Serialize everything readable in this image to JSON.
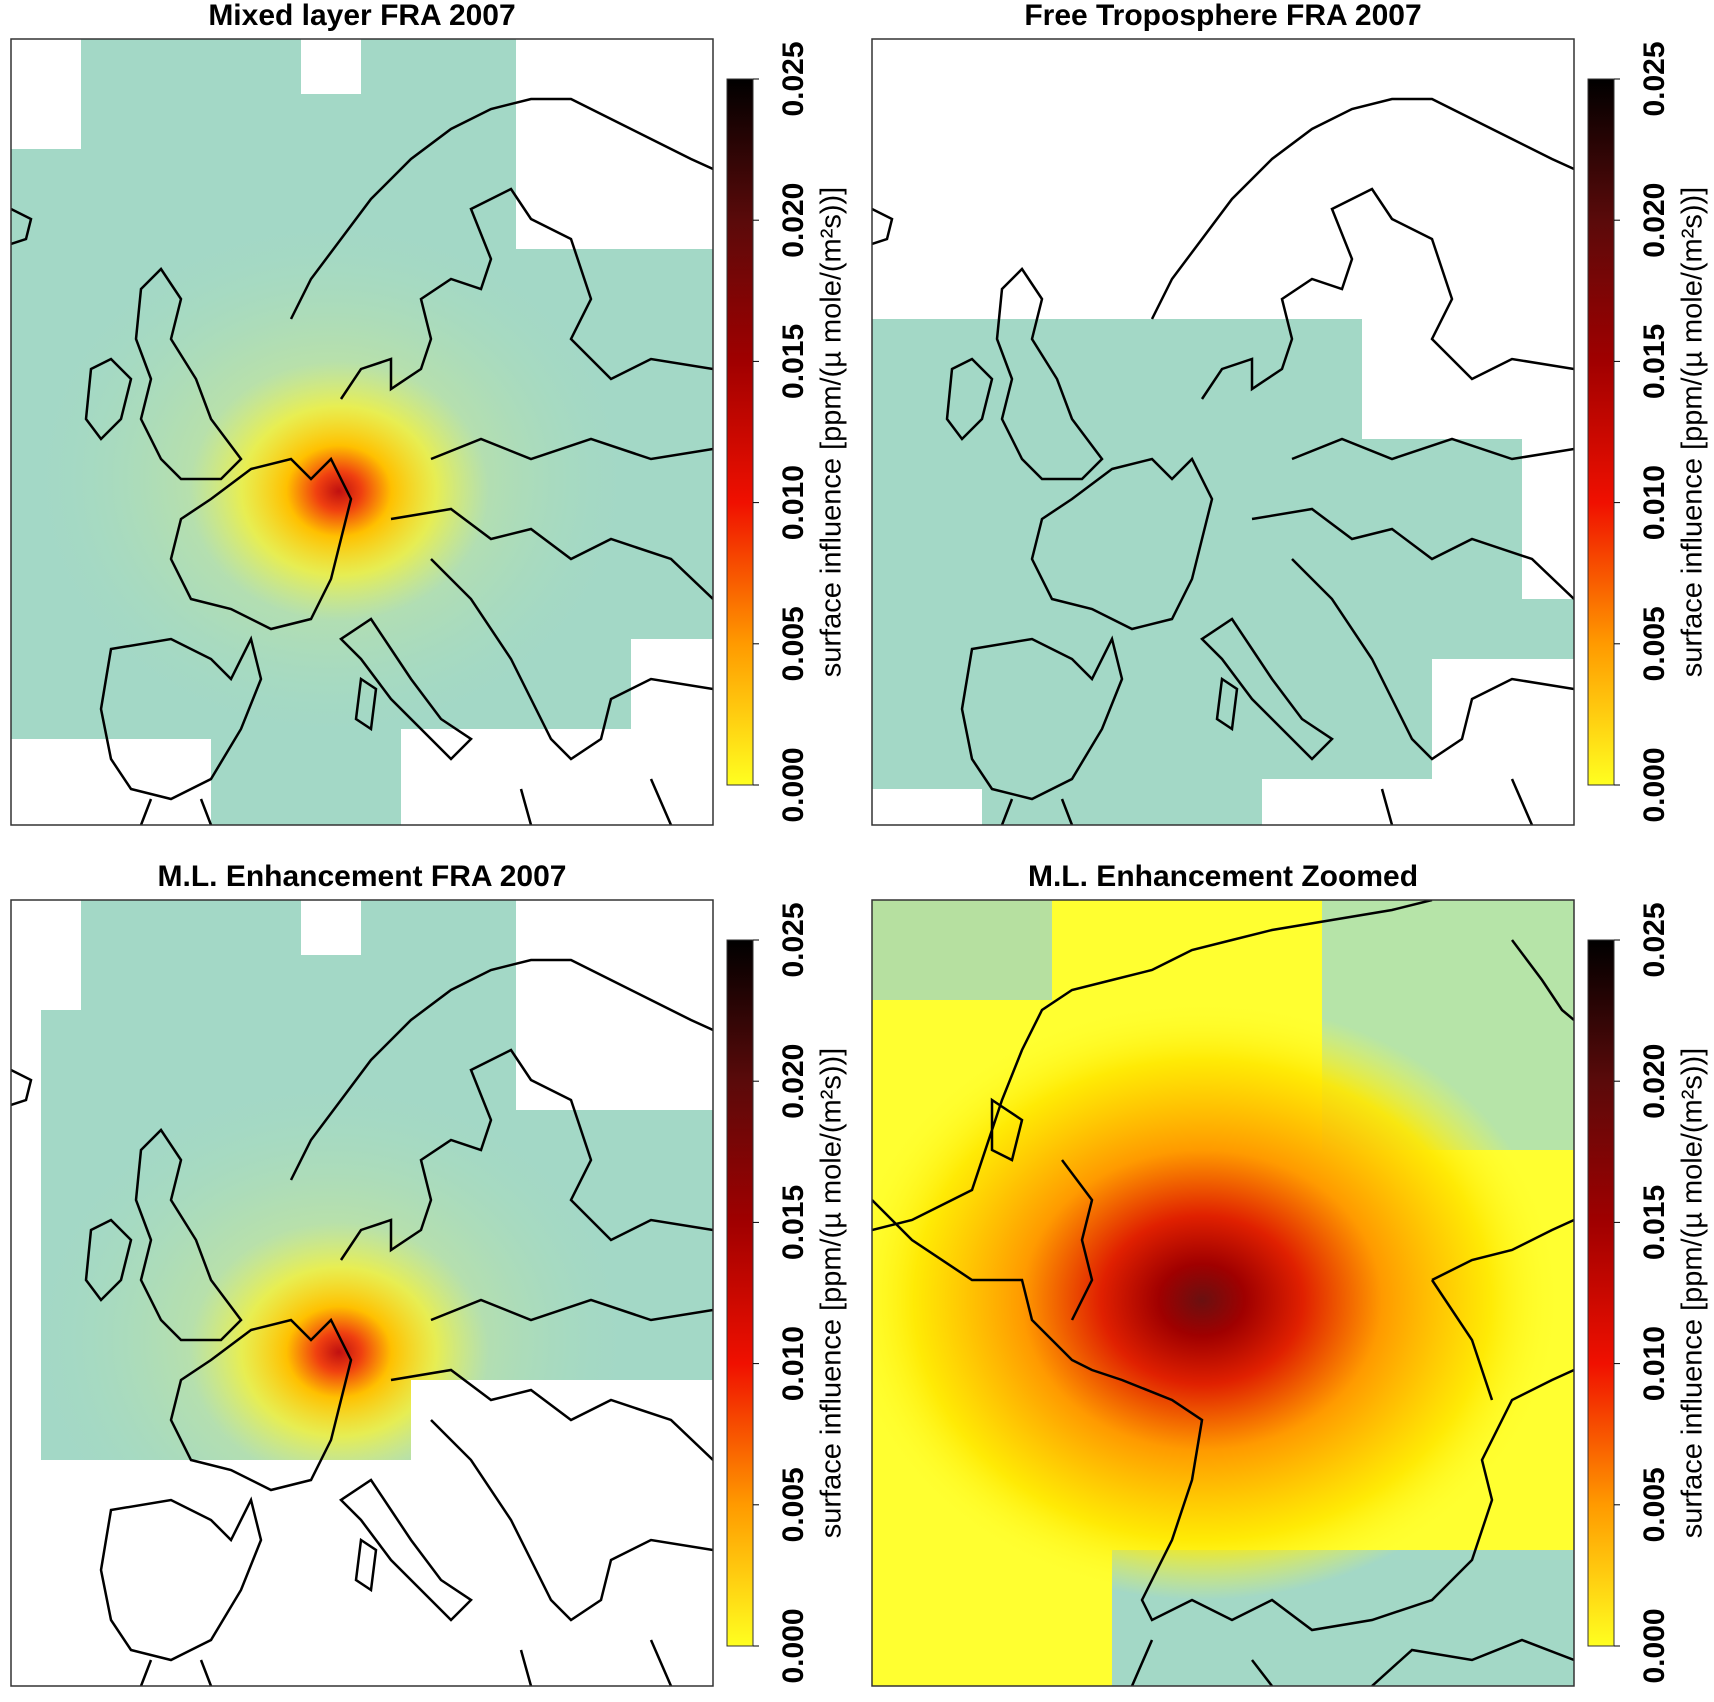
{
  "panels": [
    {
      "title": "Mixed layer FRA 2007"
    },
    {
      "title": "Free Troposphere FRA 2007"
    },
    {
      "title": "M.L. Enhancement FRA 2007"
    },
    {
      "title": "M.L. Enhancement Zoomed"
    }
  ],
  "colorbar": {
    "label": "surface influence [ppm/(µ mole/(m²s))]",
    "range": [
      0,
      0.025
    ],
    "ticks": [
      {
        "value": 0,
        "label": "0.000"
      },
      {
        "value": 0.005,
        "label": "0.005"
      },
      {
        "value": 0.01,
        "label": "0.010"
      },
      {
        "value": 0.015,
        "label": "0.015"
      },
      {
        "value": 0.02,
        "label": "0.020"
      },
      {
        "value": 0.025,
        "label": "0.025"
      }
    ],
    "colors": [
      "#ffff20",
      "#ff9a00",
      "#f01000",
      "#a00000",
      "#5a0a0a",
      "#000000"
    ]
  }
}
